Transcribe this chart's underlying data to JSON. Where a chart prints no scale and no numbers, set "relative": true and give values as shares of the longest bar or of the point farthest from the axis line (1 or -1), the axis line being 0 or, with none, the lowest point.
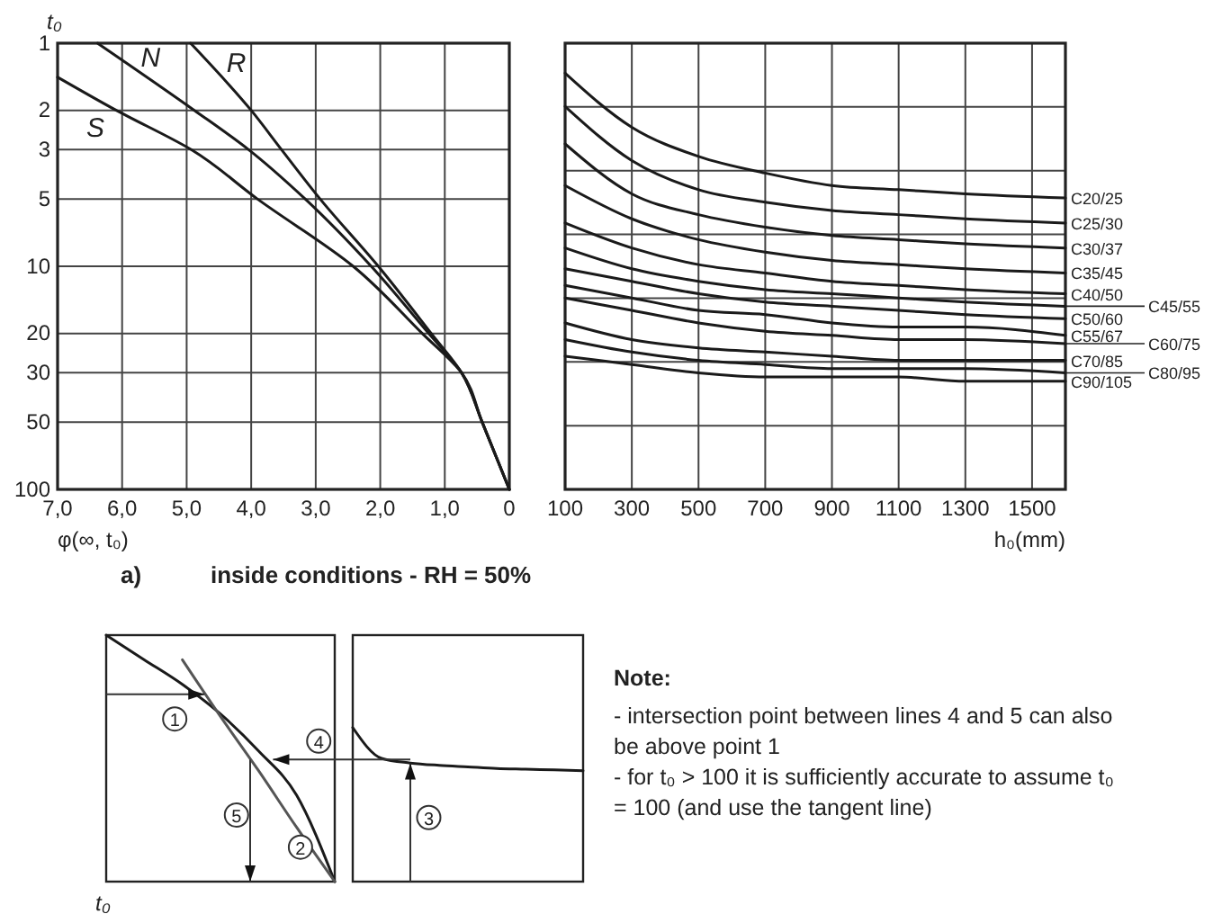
{
  "chart_data": [
    {
      "type": "line",
      "xlabel": "φ(∞, t₀)",
      "ylabel": "t₀",
      "log": "y",
      "grid": true,
      "xlim": [
        7,
        0
      ],
      "xticks": [
        {
          "value": 7,
          "label": "7,0"
        },
        {
          "value": 6,
          "label": "6,0"
        },
        {
          "value": 5,
          "label": "5,0"
        },
        {
          "value": 4,
          "label": "4,0"
        },
        {
          "value": 3,
          "label": "3,0"
        },
        {
          "value": 2,
          "label": "2,0"
        },
        {
          "value": 1,
          "label": "1,0"
        },
        0
      ],
      "ylim": [
        100,
        1
      ],
      "yticks": [
        1,
        2,
        3,
        5,
        10,
        20,
        30,
        50,
        100
      ],
      "annotations": [
        "a)",
        "inside conditions -  RH = 50%"
      ],
      "series": [
        {
          "name": "N",
          "color": "#1a1a1a",
          "x": [
            6.38,
            4.88,
            4.04,
            3.16,
            2.14,
            1.25,
            0.74,
            0.42,
            0
          ],
          "values": [
            1,
            2,
            3,
            5,
            10,
            20,
            30,
            50,
            100
          ]
        },
        {
          "name": "R",
          "color": "#1a1a1a",
          "x": [
            4.94,
            4.0,
            3.53,
            2.93,
            2.03,
            1.21,
            0.74,
            0.42,
            0
          ],
          "values": [
            1,
            2,
            3,
            5,
            10,
            20,
            30,
            50,
            100
          ]
        },
        {
          "name": "S",
          "color": "#1a1a1a",
          "x": [
            7,
            6.09,
            4.93,
            3.9,
            2.42,
            1.35,
            0.74,
            0.42,
            0
          ],
          "values": [
            1.42,
            2,
            3,
            5,
            10,
            20,
            30,
            50,
            100
          ]
        }
      ]
    },
    {
      "type": "line",
      "xlabel": "h₀(mm)",
      "relative": true,
      "grid": true,
      "legend": "right",
      "xlim": [
        100,
        1600
      ],
      "xticks": [
        100,
        300,
        500,
        700,
        900,
        1100,
        1300,
        1500
      ],
      "x": [
        100,
        300,
        500,
        700,
        900,
        1100,
        1300,
        1600
      ],
      "series": [
        {
          "name": "C20/25",
          "color": "#1a1a1a",
          "values": [
            1,
            0.87,
            0.8,
            0.76,
            0.73,
            0.72,
            0.71,
            0.7
          ]
        },
        {
          "name": "C25/30",
          "color": "#1a1a1a",
          "values": [
            0.92,
            0.79,
            0.72,
            0.69,
            0.67,
            0.66,
            0.65,
            0.64
          ]
        },
        {
          "name": "C30/37",
          "color": "#1a1a1a",
          "values": [
            0.83,
            0.71,
            0.66,
            0.63,
            0.61,
            0.6,
            0.59,
            0.58
          ]
        },
        {
          "name": "C35/45",
          "color": "#1a1a1a",
          "values": [
            0.73,
            0.65,
            0.6,
            0.57,
            0.55,
            0.54,
            0.53,
            0.52
          ]
        },
        {
          "name": "C40/50",
          "color": "#1a1a1a",
          "values": [
            0.64,
            0.58,
            0.54,
            0.52,
            0.5,
            0.49,
            0.48,
            0.47
          ]
        },
        {
          "name": "C45/55",
          "color": "#1a1a1a",
          "values": [
            0.58,
            0.53,
            0.5,
            0.48,
            0.47,
            0.46,
            0.45,
            0.44
          ]
        },
        {
          "name": "C50/60",
          "color": "#1a1a1a",
          "values": [
            0.53,
            0.5,
            0.47,
            0.45,
            0.44,
            0.43,
            0.42,
            0.41
          ]
        },
        {
          "name": "C55/67",
          "color": "#1a1a1a",
          "values": [
            0.49,
            0.46,
            0.43,
            0.42,
            0.4,
            0.39,
            0.39,
            0.37
          ]
        },
        {
          "name": "C60/75",
          "color": "#1a1a1a",
          "values": [
            0.46,
            0.43,
            0.4,
            0.38,
            0.37,
            0.36,
            0.36,
            0.35
          ]
        },
        {
          "name": "C70/85",
          "color": "#1a1a1a",
          "values": [
            0.4,
            0.36,
            0.34,
            0.33,
            0.32,
            0.31,
            0.31,
            0.31
          ]
        },
        {
          "name": "C80/95",
          "color": "#1a1a1a",
          "values": [
            0.36,
            0.33,
            0.31,
            0.3,
            0.29,
            0.29,
            0.29,
            0.28
          ]
        },
        {
          "name": "C90/105",
          "color": "#1a1a1a",
          "values": [
            0.32,
            0.3,
            0.28,
            0.27,
            0.27,
            0.27,
            0.26,
            0.26
          ]
        }
      ]
    },
    {
      "type": "line",
      "relative": true,
      "ylabel": "t₀",
      "categories": [
        null,
        null,
        null,
        null,
        null,
        null,
        null
      ],
      "annotations": [
        "1",
        "5",
        "2",
        "4"
      ],
      "series": [
        {
          "color": "#1a1a1a",
          "values": [
            1,
            0.9,
            0.8,
            0.68,
            0.53,
            0.35,
            0
          ]
        },
        {
          "color": "#555555",
          "values": [
            null,
            null,
            0.9,
            0.67,
            0.45,
            0.22,
            0
          ]
        }
      ]
    },
    {
      "type": "line",
      "relative": true,
      "categories": [
        null,
        null,
        null,
        null,
        null,
        null,
        null,
        null,
        null
      ],
      "annotations": [
        "3",
        "Note:",
        "- intersection point between lines 4 and 5 can also",
        "be above point 1",
        "- for t₀ > 100 it is sufficiently accurate to assume t₀",
        "= 100 (and use the tangent line)"
      ],
      "series": [
        {
          "color": "#1a1a1a",
          "values": [
            1,
            0.8,
            0.77,
            0.755,
            0.745,
            0.735,
            0.73,
            0.725,
            0.72
          ]
        }
      ]
    }
  ]
}
